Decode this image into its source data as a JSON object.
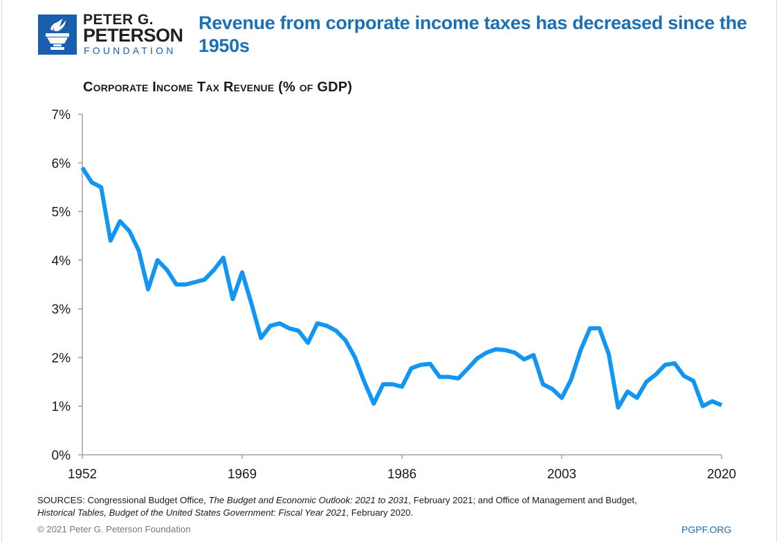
{
  "brand": {
    "logo_line1": "PETER G.",
    "logo_line2": "PETERSON",
    "logo_line3": "FOUNDATION",
    "logo_icon": "torch-icon",
    "brand_color": "#1a5fae"
  },
  "headline": "Revenue from corporate income taxes has decreased since the 1950s",
  "chart_data": {
    "type": "line",
    "title": "Corporate Income Tax Revenue (% of GDP)",
    "xlabel": "",
    "ylabel": "",
    "xlim": [
      1952,
      2020
    ],
    "ylim": [
      0,
      7
    ],
    "x_ticks": [
      1952,
      1969,
      1986,
      2003,
      2020
    ],
    "x_tick_labels": [
      "1952",
      "1969",
      "1986",
      "2003",
      "2020"
    ],
    "y_ticks": [
      0,
      1,
      2,
      3,
      4,
      5,
      6,
      7
    ],
    "y_tick_labels": [
      "0%",
      "1%",
      "2%",
      "3%",
      "4%",
      "5%",
      "6%",
      "7%"
    ],
    "grid": false,
    "legend": "none",
    "line_color": "#1196f3",
    "series": [
      {
        "name": "Corporate income tax revenue (% of GDP)",
        "x": [
          1952,
          1953,
          1954,
          1955,
          1956,
          1957,
          1958,
          1959,
          1960,
          1961,
          1962,
          1963,
          1964,
          1965,
          1966,
          1967,
          1968,
          1969,
          1970,
          1971,
          1972,
          1973,
          1974,
          1975,
          1976,
          1977,
          1978,
          1979,
          1980,
          1981,
          1982,
          1983,
          1984,
          1985,
          1986,
          1987,
          1988,
          1989,
          1990,
          1991,
          1992,
          1993,
          1994,
          1995,
          1996,
          1997,
          1998,
          1999,
          2000,
          2001,
          2002,
          2003,
          2004,
          2005,
          2006,
          2007,
          2008,
          2009,
          2010,
          2011,
          2012,
          2013,
          2014,
          2015,
          2016,
          2017,
          2018,
          2019,
          2020
        ],
        "values": [
          5.9,
          5.6,
          5.5,
          4.4,
          4.8,
          4.6,
          4.2,
          3.4,
          4.0,
          3.8,
          3.5,
          3.5,
          3.55,
          3.6,
          3.8,
          4.05,
          3.2,
          3.75,
          3.1,
          2.4,
          2.65,
          2.7,
          2.6,
          2.55,
          2.3,
          2.7,
          2.65,
          2.55,
          2.35,
          2.0,
          1.5,
          1.05,
          1.45,
          1.45,
          1.4,
          1.78,
          1.85,
          1.87,
          1.6,
          1.6,
          1.57,
          1.77,
          1.98,
          2.1,
          2.17,
          2.15,
          2.1,
          1.96,
          2.05,
          1.45,
          1.35,
          1.17,
          1.55,
          2.15,
          2.6,
          2.6,
          2.07,
          0.97,
          1.3,
          1.17,
          1.5,
          1.65,
          1.85,
          1.88,
          1.62,
          1.52,
          1.0,
          1.1,
          1.02
        ]
      }
    ]
  },
  "footer": {
    "sources_prefix": "SOURCES: Congressional Budget Office, ",
    "source1_title": "The Budget and Economic Outlook: 2021 to 2031",
    "source1_suffix": ", February 2021; and Office of Management and Budget,",
    "source2_title": "Historical Tables, Budget of the United States Government: Fiscal Year 2021",
    "source2_suffix": ", February 2020.",
    "copyright": "© 2021 Peter G. Peterson Foundation",
    "site": "PGPF.ORG"
  }
}
